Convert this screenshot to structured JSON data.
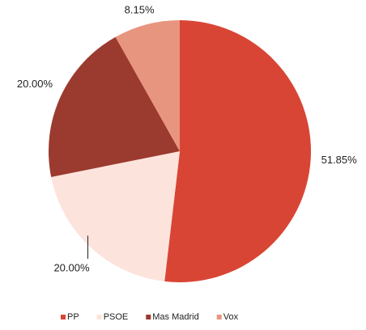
{
  "chart_data": {
    "type": "pie",
    "categories": [
      "PP",
      "PSOE",
      "Mas Madrid",
      "Vox"
    ],
    "values": [
      51.85,
      20.0,
      20.0,
      8.15
    ],
    "value_labels": [
      "51.85%",
      "20.00%",
      "20.00%",
      "8.15%"
    ],
    "colors": [
      "#d94535",
      "#fce3dc",
      "#9b3a2e",
      "#e8957f"
    ],
    "legend": "bottom"
  }
}
